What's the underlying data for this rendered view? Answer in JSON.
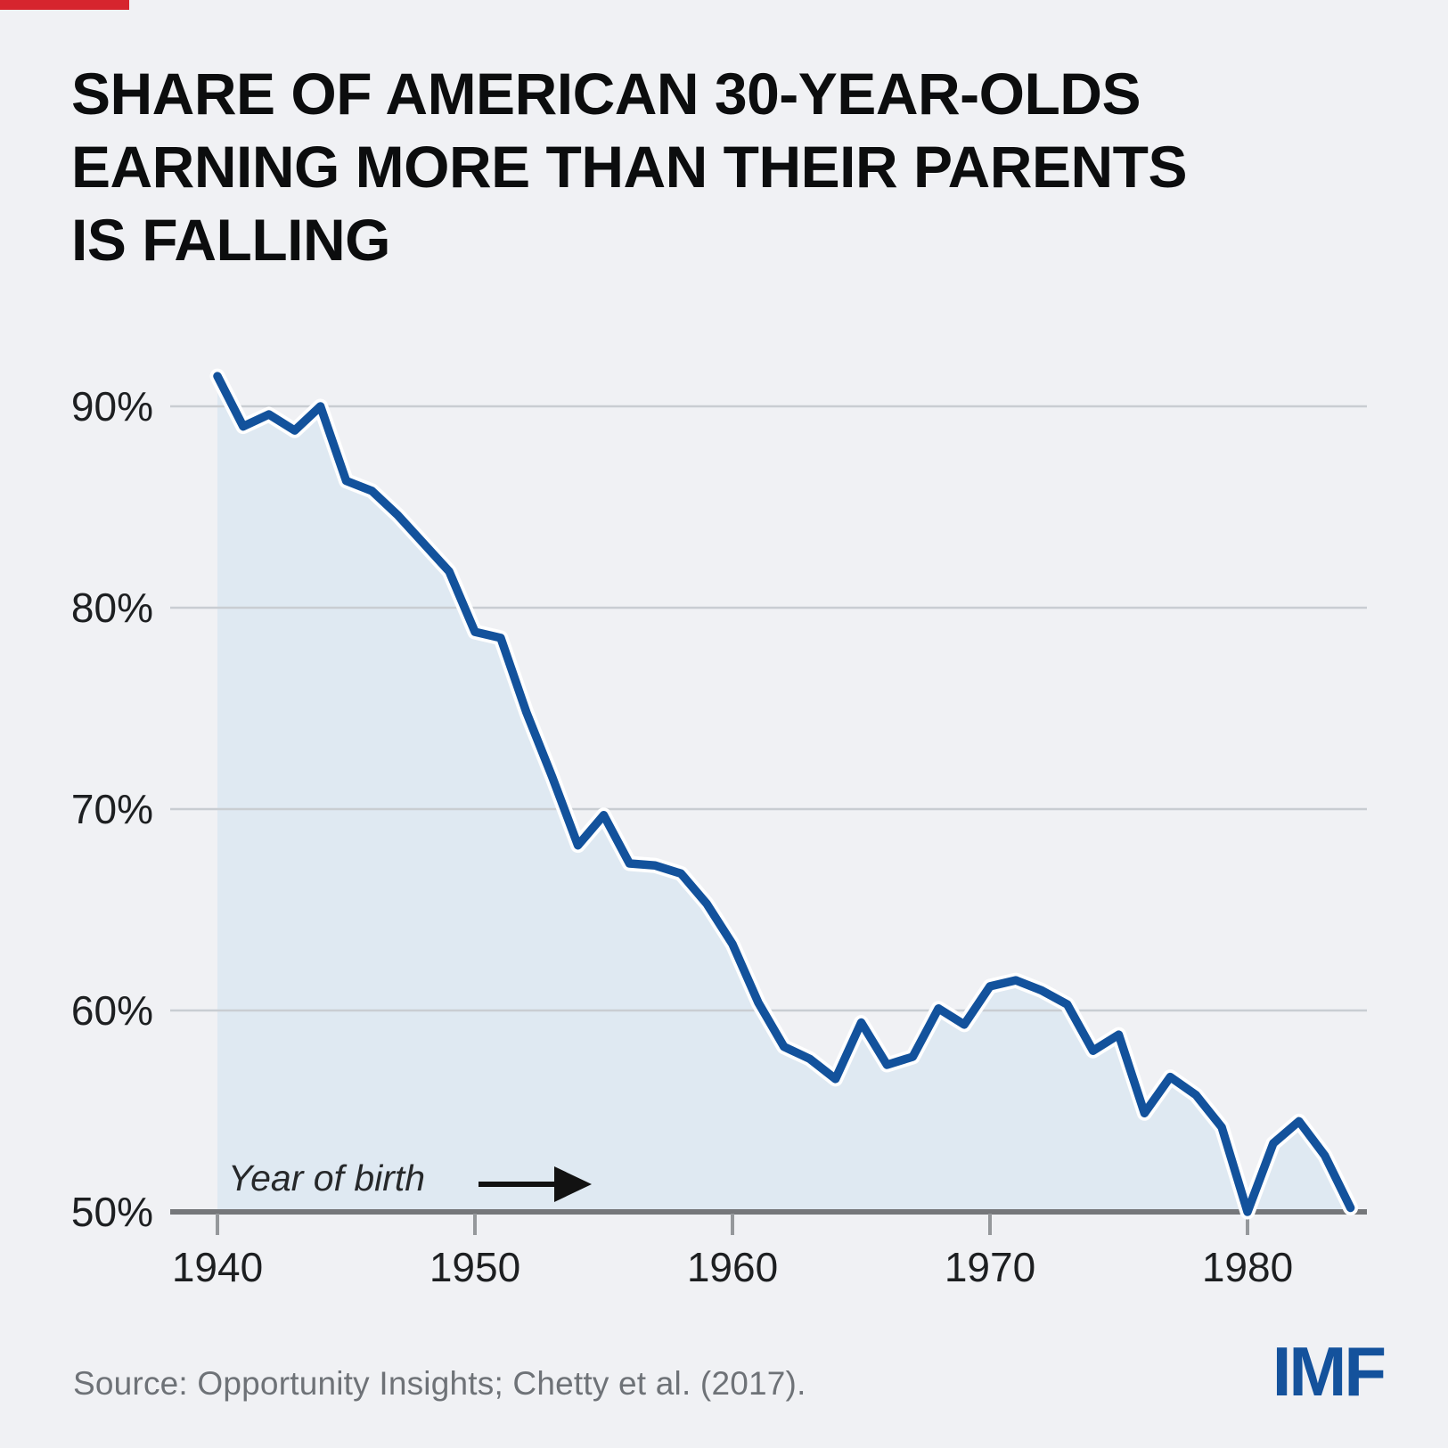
{
  "page": {
    "background_color": "#f0f1f4",
    "accent_bar_color": "#d6252e"
  },
  "header": {
    "title_line1": "SHARE OF AMERICAN 30-YEAR-OLDS",
    "title_line2": "EARNING MORE THAN THEIR PARENTS",
    "title_line3": "IS FALLING"
  },
  "chart_data": {
    "type": "area",
    "title": "Share of American 30-year-olds earning more than their parents is falling",
    "x_label_annotation": "Year of birth",
    "x": [
      1940,
      1941,
      1942,
      1943,
      1944,
      1945,
      1946,
      1947,
      1948,
      1949,
      1950,
      1951,
      1952,
      1953,
      1954,
      1955,
      1956,
      1957,
      1958,
      1959,
      1960,
      1961,
      1962,
      1963,
      1964,
      1965,
      1966,
      1967,
      1968,
      1969,
      1970,
      1971,
      1972,
      1973,
      1974,
      1975,
      1976,
      1977,
      1978,
      1979,
      1980,
      1981,
      1982,
      1983,
      1984
    ],
    "values": [
      91.5,
      89.0,
      89.6,
      88.8,
      90.0,
      86.3,
      85.8,
      84.6,
      83.2,
      81.8,
      78.8,
      78.5,
      74.8,
      71.6,
      68.2,
      69.7,
      67.3,
      67.2,
      66.8,
      65.3,
      63.3,
      60.4,
      58.2,
      57.6,
      56.6,
      59.4,
      57.3,
      57.7,
      60.1,
      59.3,
      61.2,
      61.5,
      61.0,
      60.3,
      58.0,
      58.8,
      54.9,
      56.7,
      55.8,
      54.2,
      50.0,
      53.4,
      54.5,
      52.8,
      50.2
    ],
    "x_ticks": [
      1940,
      1950,
      1960,
      1970,
      1980
    ],
    "y_ticks": [
      90,
      80,
      70,
      60,
      50
    ],
    "y_tick_suffix": "%",
    "xlim": [
      1938,
      1985
    ],
    "ylim": [
      50,
      93
    ],
    "grid": "horizontal",
    "legend": "none",
    "line_color": "#13529c",
    "line_casing_color": "#ffffff",
    "area_color": "#dfe9f2",
    "gridline_color": "#c9cdd2",
    "axis_color": "#75777a",
    "tick_color": "#95989b",
    "tick_label_color": "#1d1f21",
    "annotation_color": "#26282a"
  },
  "footer": {
    "source": "Source: Opportunity Insights; Chetty et al. (2017).",
    "logo": "IMF",
    "logo_color": "#14529c"
  }
}
